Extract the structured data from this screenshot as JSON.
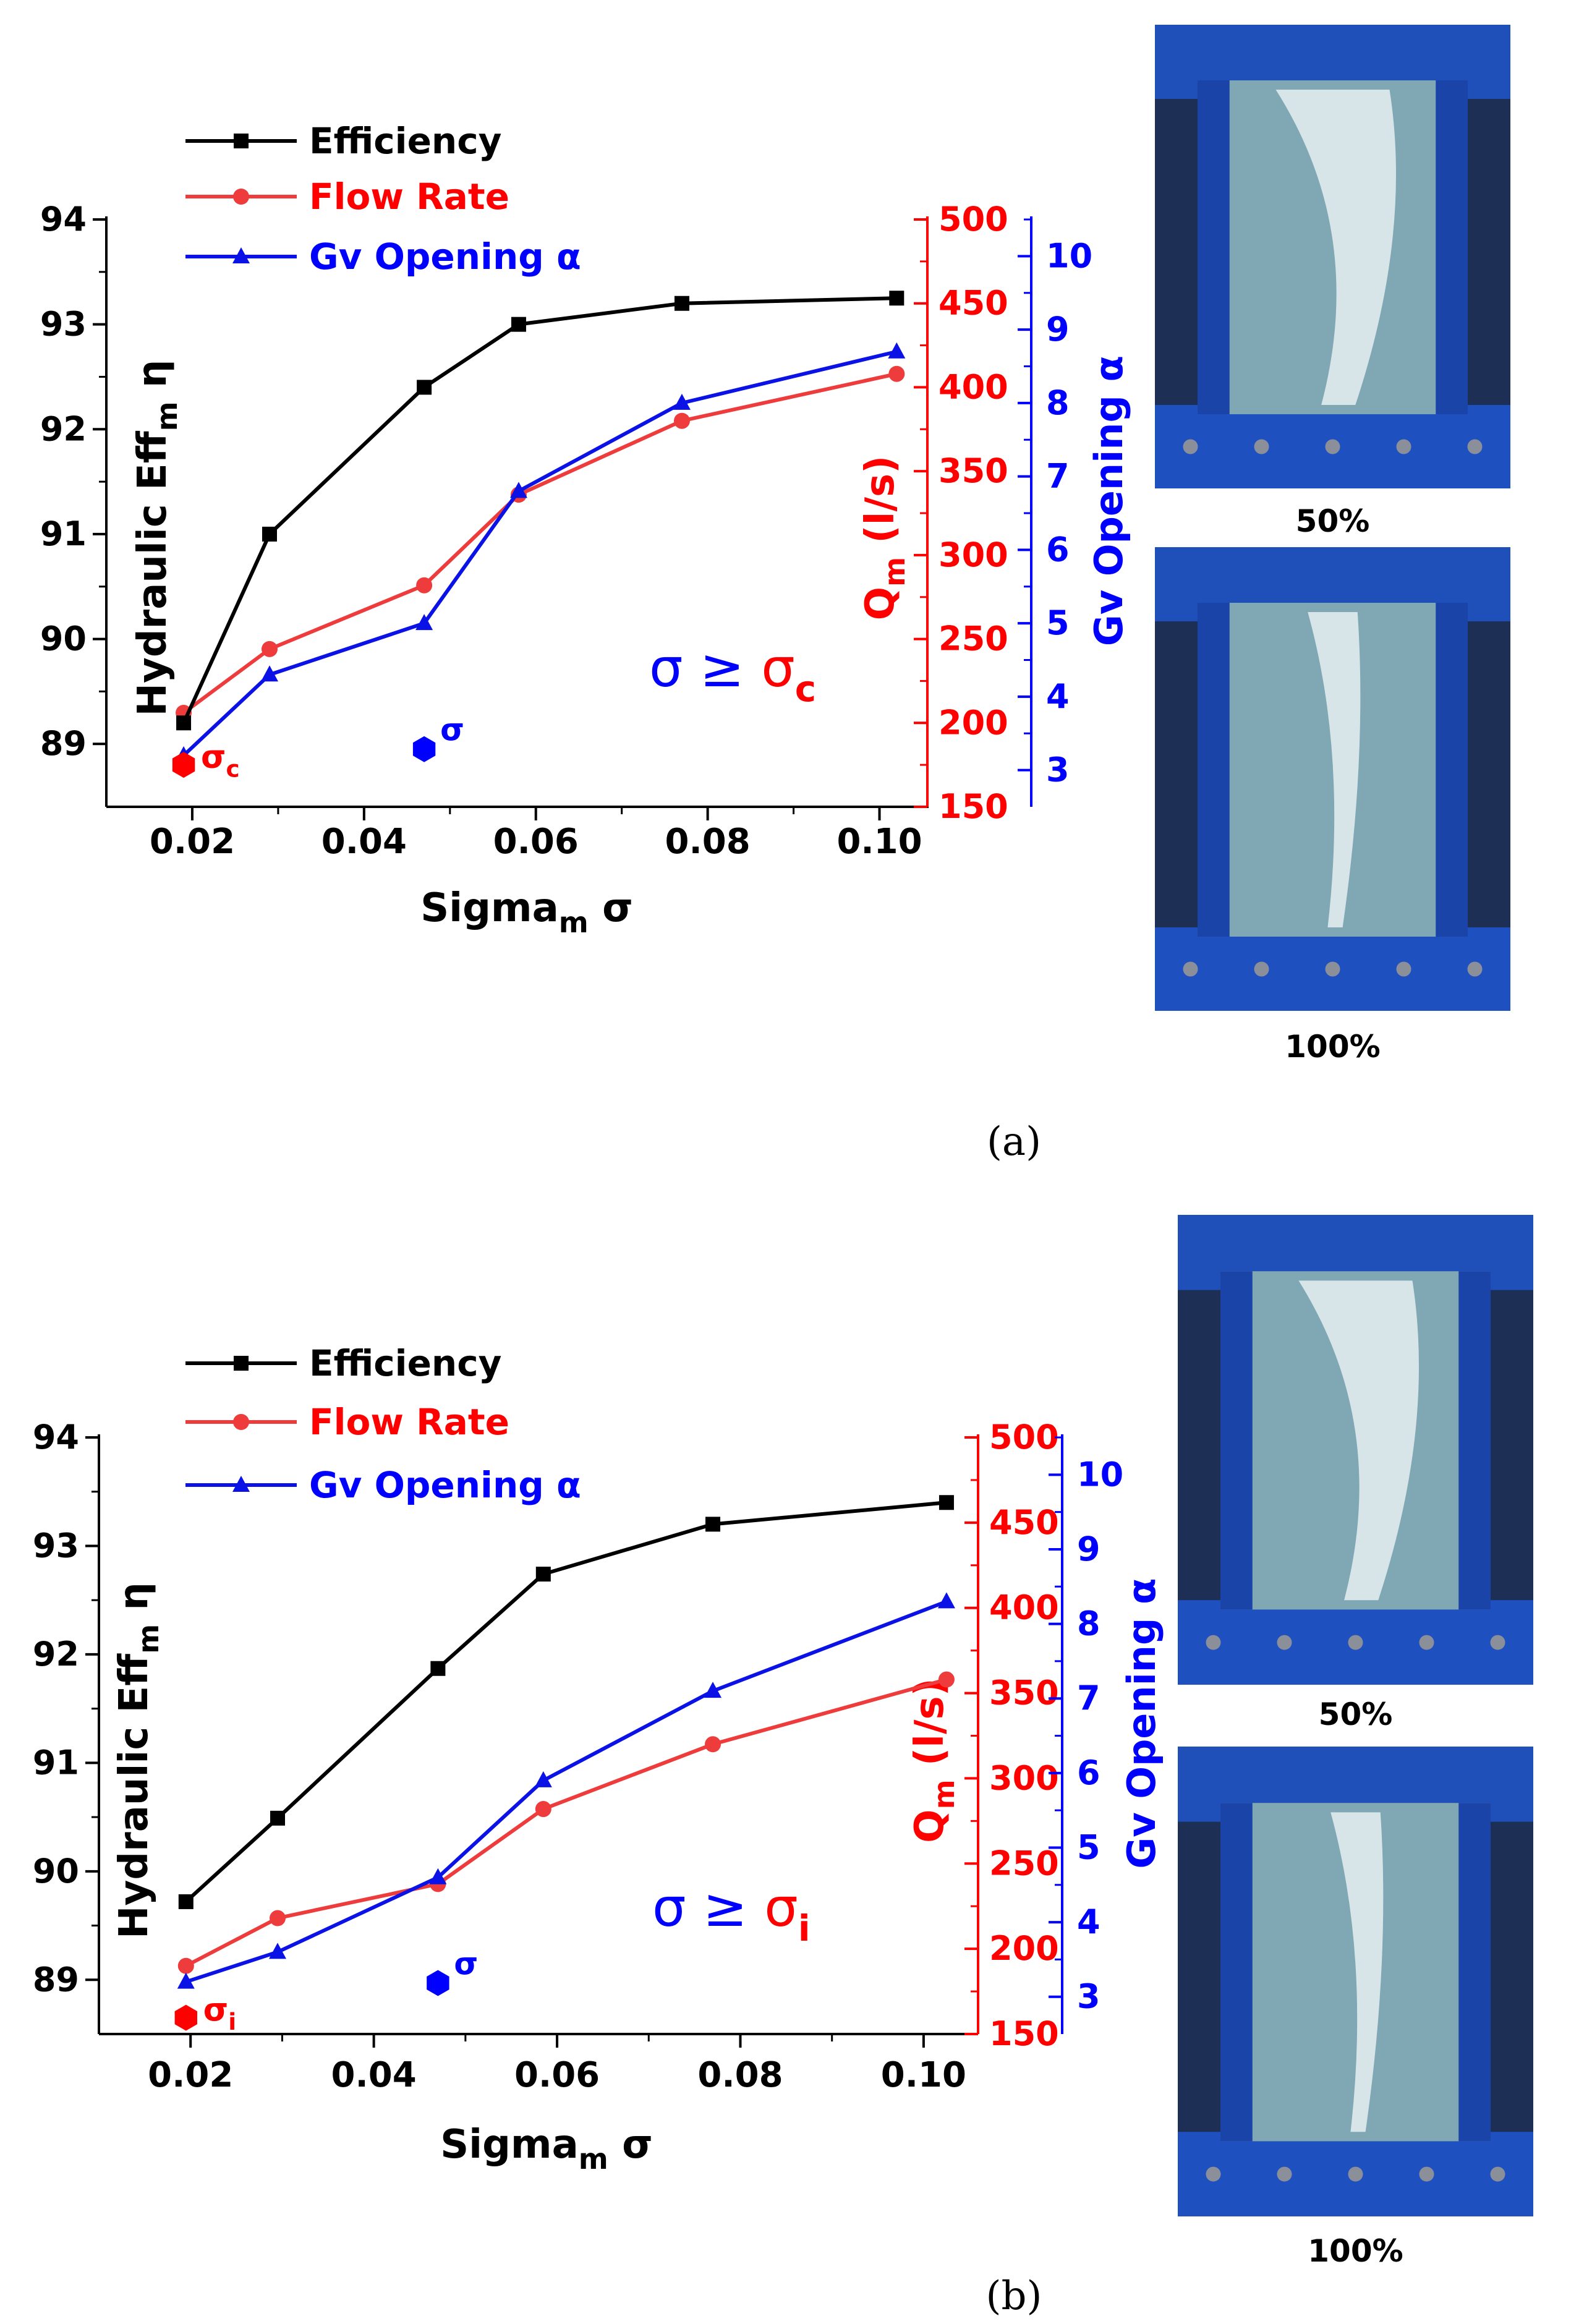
{
  "panels": [
    {
      "label": "(a)",
      "photo_labels": [
        "50%",
        "100%"
      ],
      "legend": [
        "Efficiency",
        "Flow Rate",
        "Gv Opening α"
      ],
      "axes": {
        "x": {
          "label": "Sigma",
          "sub": "m",
          "suffix": " σ",
          "ticks": [
            "0.02",
            "0.04",
            "0.06",
            "0.08",
            "0.10"
          ]
        },
        "y_left": {
          "label": "Hydraulic Eff",
          "sub": "m",
          "suffix": " η",
          "ticks": [
            "89",
            "90",
            "91",
            "92",
            "93",
            "94"
          ]
        },
        "y_red": {
          "label": "Q",
          "sub": "m",
          "suffix": " (l/s)",
          "ticks": [
            "150",
            "200",
            "250",
            "300",
            "350",
            "400",
            "450",
            "500"
          ]
        },
        "y_blue": {
          "label": "Gv Opening α",
          "ticks": [
            "3",
            "4",
            "5",
            "6",
            "7",
            "8",
            "9",
            "10"
          ]
        }
      },
      "annotation": {
        "left": "σ ≥ ",
        "right": "σ",
        "right_sub": "c"
      },
      "markers": {
        "sigma_c": {
          "symbol": "σ",
          "sub": "c"
        },
        "sigma": {
          "symbol": "σ"
        }
      }
    },
    {
      "label": "(b)",
      "photo_labels": [
        "50%",
        "100%"
      ],
      "legend": [
        "Efficiency",
        "Flow Rate",
        "Gv Opening α"
      ],
      "axes": {
        "x": {
          "label": "Sigma",
          "sub": "m",
          "suffix": " σ",
          "ticks": [
            "0.02",
            "0.04",
            "0.06",
            "0.08",
            "0.10"
          ]
        },
        "y_left": {
          "label": "Hydraulic Eff",
          "sub": "m",
          "suffix": " η",
          "ticks": [
            "89",
            "90",
            "91",
            "92",
            "93",
            "94"
          ]
        },
        "y_red": {
          "label": "Q",
          "sub": "m",
          "suffix": " (l/s)",
          "ticks": [
            "150",
            "200",
            "250",
            "300",
            "350",
            "400",
            "450",
            "500"
          ]
        },
        "y_blue": {
          "label": "Gv Opening α",
          "ticks": [
            "3",
            "4",
            "5",
            "6",
            "7",
            "8",
            "9",
            "10"
          ]
        }
      },
      "annotation": {
        "left": "σ ≥ ",
        "right": "σ",
        "right_sub": "i"
      },
      "markers": {
        "sigma_c": {
          "symbol": "σ",
          "sub": "i"
        },
        "sigma": {
          "symbol": "σ"
        }
      }
    }
  ],
  "colors": {
    "efficiency": "#000000",
    "flow": "#ee3b3b",
    "gv": "#0a12e6",
    "flow_axis": "#ff0000",
    "gv_axis": "#0000ff"
  },
  "chart_data": [
    {
      "type": "line",
      "panel": "a",
      "x": [
        0.019,
        0.029,
        0.047,
        0.058,
        0.077,
        0.102
      ],
      "xlim": [
        0.01,
        0.105
      ],
      "series": [
        {
          "name": "Efficiency",
          "axis": "left",
          "x": [
            0.019,
            0.029,
            0.047,
            0.058,
            0.077,
            0.102
          ],
          "values": [
            89.2,
            91.0,
            92.4,
            93.0,
            93.2,
            93.25
          ]
        },
        {
          "name": "Flow Rate",
          "axis": "right-red",
          "x": [
            0.019,
            0.029,
            0.047,
            0.058,
            0.077,
            0.102
          ],
          "values": [
            206,
            244,
            282,
            336,
            380,
            408
          ]
        },
        {
          "name": "Gv Opening α",
          "axis": "right-blue",
          "x": [
            0.019,
            0.029,
            0.047,
            0.058,
            0.077,
            0.102
          ],
          "values": [
            3.2,
            4.3,
            5.0,
            6.8,
            8.0,
            8.7
          ]
        }
      ],
      "ylim_left": [
        88.4,
        94
      ],
      "ylim_red": [
        150,
        500
      ],
      "ylim_blue": [
        2.5,
        10.5
      ],
      "markers": [
        {
          "name": "σc",
          "x": 0.019,
          "y": 88.8
        },
        {
          "name": "σ",
          "x": 0.047,
          "y": 88.95
        }
      ],
      "xlabel": "Sigmam σ",
      "ylabel": "Hydraulic Effm η",
      "y2label": "Qm (l/s)",
      "y3label": "Gv Opening α"
    },
    {
      "type": "line",
      "panel": "b",
      "x": [
        0.0195,
        0.0295,
        0.047,
        0.0585,
        0.077,
        0.1025
      ],
      "xlim": [
        0.01,
        0.105
      ],
      "series": [
        {
          "name": "Efficiency",
          "axis": "left",
          "x": [
            0.0195,
            0.0295,
            0.047,
            0.0585,
            0.077,
            0.1025
          ],
          "values": [
            89.72,
            90.49,
            91.87,
            92.74,
            93.2,
            93.4
          ]
        },
        {
          "name": "Flow Rate",
          "axis": "right-red",
          "x": [
            0.0195,
            0.0295,
            0.047,
            0.0585,
            0.077,
            0.1025
          ],
          "values": [
            190,
            218,
            238,
            282,
            320,
            358
          ]
        },
        {
          "name": "Gv Opening α",
          "axis": "right-blue",
          "x": [
            0.0195,
            0.0295,
            0.047,
            0.0585,
            0.077,
            0.1025
          ],
          "values": [
            3.2,
            3.6,
            4.6,
            5.9,
            7.1,
            8.3
          ]
        }
      ],
      "ylim_left": [
        88.5,
        94
      ],
      "ylim_red": [
        150,
        500
      ],
      "ylim_blue": [
        2.5,
        10.5
      ],
      "markers": [
        {
          "name": "σi",
          "x": 0.0195,
          "y": 88.65
        },
        {
          "name": "σ",
          "x": 0.047,
          "y": 88.97
        }
      ],
      "xlabel": "Sigmam σ",
      "ylabel": "Hydraulic Effm η",
      "y2label": "Qm (l/s)",
      "y3label": "Gv Opening α"
    }
  ]
}
